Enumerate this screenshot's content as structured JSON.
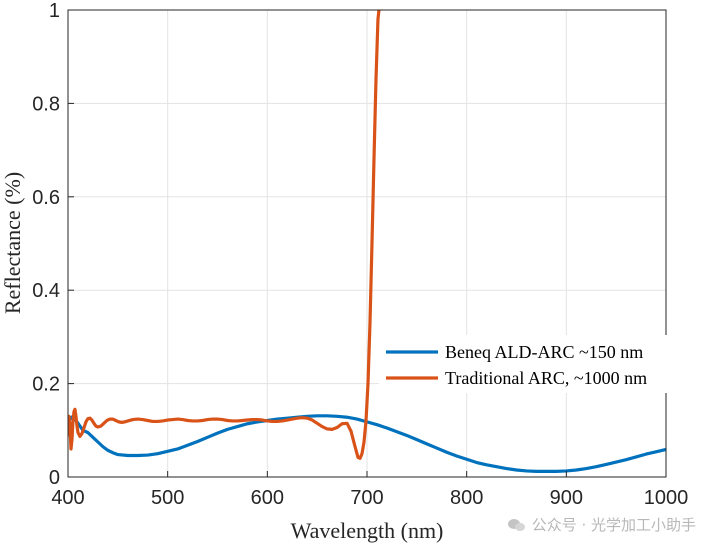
{
  "chart_data": {
    "type": "line",
    "xlabel": "Wavelength (nm)",
    "ylabel": "Reflectance (%)",
    "xlim": [
      400,
      1000
    ],
    "ylim": [
      0,
      1
    ],
    "xticks": [
      400,
      500,
      600,
      700,
      800,
      900,
      1000
    ],
    "yticks": [
      0,
      0.2,
      0.4,
      0.6,
      0.8,
      1
    ],
    "ytick_labels": [
      "0",
      "0.2",
      "0.4",
      "0.6",
      "0.8",
      "1"
    ],
    "grid": true,
    "legend_position": "right",
    "series": [
      {
        "name": "Beneq ALD-ARC ~150 nm",
        "color": "#0072BD",
        "points": [
          [
            400,
            0.12
          ],
          [
            405,
            0.13
          ],
          [
            410,
            0.115
          ],
          [
            415,
            0.1
          ],
          [
            420,
            0.095
          ],
          [
            425,
            0.085
          ],
          [
            430,
            0.075
          ],
          [
            435,
            0.065
          ],
          [
            440,
            0.057
          ],
          [
            445,
            0.052
          ],
          [
            450,
            0.048
          ],
          [
            460,
            0.046
          ],
          [
            470,
            0.046
          ],
          [
            480,
            0.047
          ],
          [
            490,
            0.05
          ],
          [
            500,
            0.055
          ],
          [
            510,
            0.06
          ],
          [
            520,
            0.068
          ],
          [
            530,
            0.076
          ],
          [
            540,
            0.085
          ],
          [
            550,
            0.094
          ],
          [
            560,
            0.102
          ],
          [
            570,
            0.108
          ],
          [
            580,
            0.114
          ],
          [
            590,
            0.118
          ],
          [
            600,
            0.121
          ],
          [
            610,
            0.124
          ],
          [
            620,
            0.126
          ],
          [
            630,
            0.128
          ],
          [
            640,
            0.13
          ],
          [
            650,
            0.131
          ],
          [
            660,
            0.131
          ],
          [
            670,
            0.13
          ],
          [
            680,
            0.128
          ],
          [
            690,
            0.124
          ],
          [
            700,
            0.118
          ],
          [
            710,
            0.112
          ],
          [
            720,
            0.105
          ],
          [
            730,
            0.097
          ],
          [
            740,
            0.089
          ],
          [
            750,
            0.08
          ],
          [
            760,
            0.071
          ],
          [
            770,
            0.062
          ],
          [
            780,
            0.053
          ],
          [
            790,
            0.045
          ],
          [
            800,
            0.038
          ],
          [
            810,
            0.031
          ],
          [
            820,
            0.026
          ],
          [
            830,
            0.022
          ],
          [
            840,
            0.018
          ],
          [
            850,
            0.015
          ],
          [
            860,
            0.013
          ],
          [
            870,
            0.012
          ],
          [
            880,
            0.012
          ],
          [
            890,
            0.012
          ],
          [
            900,
            0.013
          ],
          [
            910,
            0.015
          ],
          [
            920,
            0.018
          ],
          [
            930,
            0.022
          ],
          [
            940,
            0.027
          ],
          [
            950,
            0.032
          ],
          [
            960,
            0.037
          ],
          [
            970,
            0.043
          ],
          [
            980,
            0.049
          ],
          [
            990,
            0.054
          ],
          [
            1000,
            0.059
          ]
        ]
      },
      {
        "name": "Traditional ARC, ~1000 nm",
        "color": "#D95319",
        "points": [
          [
            400,
            0.09
          ],
          [
            401,
            0.13
          ],
          [
            402,
            0.11
          ],
          [
            403,
            0.06
          ],
          [
            404,
            0.08
          ],
          [
            405,
            0.12
          ],
          [
            406,
            0.14
          ],
          [
            407,
            0.145
          ],
          [
            408,
            0.13
          ],
          [
            409,
            0.11
          ],
          [
            410,
            0.095
          ],
          [
            412,
            0.087
          ],
          [
            414,
            0.093
          ],
          [
            416,
            0.105
          ],
          [
            418,
            0.118
          ],
          [
            420,
            0.125
          ],
          [
            422,
            0.126
          ],
          [
            424,
            0.122
          ],
          [
            426,
            0.115
          ],
          [
            428,
            0.109
          ],
          [
            430,
            0.107
          ],
          [
            433,
            0.109
          ],
          [
            436,
            0.115
          ],
          [
            439,
            0.121
          ],
          [
            442,
            0.124
          ],
          [
            445,
            0.124
          ],
          [
            448,
            0.121
          ],
          [
            451,
            0.118
          ],
          [
            454,
            0.117
          ],
          [
            457,
            0.118
          ],
          [
            460,
            0.12
          ],
          [
            465,
            0.123
          ],
          [
            470,
            0.124
          ],
          [
            475,
            0.123
          ],
          [
            480,
            0.121
          ],
          [
            485,
            0.119
          ],
          [
            490,
            0.119
          ],
          [
            495,
            0.12
          ],
          [
            500,
            0.122
          ],
          [
            505,
            0.123
          ],
          [
            510,
            0.124
          ],
          [
            515,
            0.123
          ],
          [
            520,
            0.121
          ],
          [
            525,
            0.12
          ],
          [
            530,
            0.12
          ],
          [
            535,
            0.121
          ],
          [
            540,
            0.123
          ],
          [
            545,
            0.124
          ],
          [
            550,
            0.124
          ],
          [
            555,
            0.123
          ],
          [
            560,
            0.121
          ],
          [
            565,
            0.12
          ],
          [
            570,
            0.12
          ],
          [
            575,
            0.121
          ],
          [
            580,
            0.122
          ],
          [
            585,
            0.123
          ],
          [
            590,
            0.123
          ],
          [
            595,
            0.122
          ],
          [
            600,
            0.12
          ],
          [
            605,
            0.119
          ],
          [
            610,
            0.119
          ],
          [
            615,
            0.12
          ],
          [
            620,
            0.122
          ],
          [
            625,
            0.124
          ],
          [
            630,
            0.126
          ],
          [
            635,
            0.127
          ],
          [
            640,
            0.126
          ],
          [
            645,
            0.122
          ],
          [
            650,
            0.115
          ],
          [
            655,
            0.108
          ],
          [
            660,
            0.103
          ],
          [
            665,
            0.102
          ],
          [
            670,
            0.106
          ],
          [
            675,
            0.114
          ],
          [
            680,
            0.115
          ],
          [
            684,
            0.098
          ],
          [
            688,
            0.065
          ],
          [
            691,
            0.042
          ],
          [
            693,
            0.04
          ],
          [
            695,
            0.05
          ],
          [
            697,
            0.075
          ],
          [
            699,
            0.12
          ],
          [
            701,
            0.2
          ],
          [
            703,
            0.33
          ],
          [
            705,
            0.5
          ],
          [
            707,
            0.68
          ],
          [
            709,
            0.85
          ],
          [
            711,
            0.98
          ],
          [
            712,
            1.0
          ]
        ]
      }
    ]
  }
}
